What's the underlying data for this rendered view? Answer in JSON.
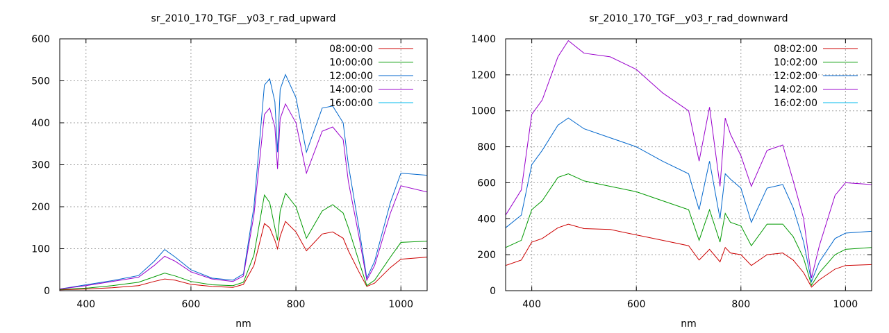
{
  "colors": {
    "08": "#cc0000",
    "10": "#009900",
    "12": "#0066cc",
    "14": "#9900cc",
    "16": "#00bbee"
  },
  "chart_data": [
    {
      "type": "line",
      "title": "sr_2010_170_TGF__y03_r_rad_upward",
      "xlabel": "nm",
      "ylabel": "",
      "xlim": [
        350,
        1050
      ],
      "ylim": [
        0,
        600
      ],
      "xticks": [
        400,
        600,
        800,
        1000
      ],
      "yticks": [
        0,
        100,
        200,
        300,
        400,
        500,
        600
      ],
      "grid": true,
      "legend": "top-right",
      "series": [
        {
          "name": "08:00:00",
          "color": "#cc0000",
          "x": [
            350,
            400,
            450,
            500,
            530,
            550,
            570,
            600,
            640,
            680,
            700,
            720,
            740,
            750,
            760,
            765,
            770,
            780,
            800,
            820,
            850,
            870,
            890,
            900,
            920,
            935,
            950,
            980,
            1000,
            1050
          ],
          "y": [
            2,
            4,
            7,
            12,
            22,
            28,
            25,
            15,
            10,
            8,
            15,
            60,
            160,
            150,
            120,
            100,
            130,
            165,
            140,
            95,
            135,
            140,
            125,
            95,
            45,
            10,
            18,
            55,
            75,
            80
          ]
        },
        {
          "name": "10:00:00",
          "color": "#009900",
          "x": [
            350,
            400,
            450,
            500,
            530,
            550,
            570,
            600,
            640,
            680,
            700,
            720,
            740,
            750,
            760,
            765,
            770,
            780,
            800,
            820,
            850,
            870,
            890,
            900,
            920,
            935,
            950,
            980,
            1000,
            1050
          ],
          "y": [
            3,
            6,
            12,
            20,
            33,
            42,
            35,
            22,
            14,
            12,
            20,
            85,
            228,
            210,
            150,
            120,
            190,
            232,
            200,
            125,
            190,
            205,
            185,
            150,
            70,
            12,
            25,
            80,
            115,
            118
          ]
        },
        {
          "name": "12:00:00",
          "color": "#0066cc",
          "x": [
            350,
            400,
            450,
            500,
            530,
            550,
            570,
            600,
            640,
            680,
            700,
            720,
            740,
            750,
            760,
            765,
            770,
            780,
            800,
            820,
            850,
            870,
            890,
            900,
            920,
            935,
            950,
            980,
            1000,
            1050
          ],
          "y": [
            4,
            14,
            24,
            36,
            70,
            98,
            80,
            50,
            30,
            25,
            40,
            200,
            490,
            505,
            450,
            330,
            480,
            515,
            460,
            330,
            435,
            440,
            400,
            300,
            150,
            30,
            70,
            210,
            280,
            275
          ]
        },
        {
          "name": "14:00:00",
          "color": "#9900cc",
          "x": [
            350,
            400,
            450,
            500,
            530,
            550,
            570,
            600,
            640,
            680,
            700,
            720,
            740,
            750,
            760,
            765,
            770,
            780,
            800,
            820,
            850,
            870,
            890,
            900,
            920,
            935,
            950,
            980,
            1000,
            1050
          ],
          "y": [
            4,
            12,
            22,
            32,
            60,
            82,
            70,
            45,
            28,
            22,
            35,
            180,
            420,
            435,
            390,
            290,
            410,
            445,
            400,
            280,
            380,
            390,
            360,
            260,
            130,
            25,
            60,
            185,
            250,
            235
          ]
        },
        {
          "name": "16:00:00",
          "color": "#00bbee",
          "x": [
            350,
            1050
          ],
          "y": [
            0,
            0
          ]
        }
      ]
    },
    {
      "type": "line",
      "title": "sr_2010_170_TGF__y03_r_rad_downward",
      "xlabel": "nm",
      "ylabel": "",
      "xlim": [
        350,
        1050
      ],
      "ylim": [
        0,
        1400
      ],
      "xticks": [
        400,
        600,
        800,
        1000
      ],
      "yticks": [
        0,
        200,
        400,
        600,
        800,
        1000,
        1200,
        1400
      ],
      "grid": true,
      "legend": "top-right",
      "series": [
        {
          "name": "08:02:00",
          "color": "#cc0000",
          "x": [
            350,
            380,
            400,
            420,
            450,
            470,
            500,
            550,
            600,
            650,
            700,
            720,
            740,
            760,
            770,
            780,
            800,
            820,
            850,
            880,
            900,
            920,
            935,
            950,
            980,
            1000,
            1050
          ],
          "y": [
            140,
            170,
            270,
            290,
            350,
            370,
            345,
            340,
            310,
            280,
            250,
            170,
            230,
            160,
            240,
            210,
            200,
            140,
            200,
            210,
            170,
            100,
            20,
            60,
            120,
            140,
            145
          ]
        },
        {
          "name": "10:02:00",
          "color": "#009900",
          "x": [
            350,
            380,
            400,
            420,
            450,
            470,
            500,
            550,
            600,
            650,
            700,
            720,
            740,
            760,
            770,
            780,
            800,
            820,
            850,
            880,
            900,
            920,
            935,
            950,
            980,
            1000,
            1050
          ],
          "y": [
            240,
            280,
            450,
            500,
            630,
            650,
            610,
            580,
            550,
            500,
            450,
            280,
            450,
            270,
            430,
            380,
            360,
            250,
            370,
            370,
            300,
            180,
            30,
            100,
            200,
            230,
            240
          ]
        },
        {
          "name": "12:02:00",
          "color": "#0066cc",
          "x": [
            350,
            380,
            400,
            420,
            450,
            470,
            500,
            550,
            600,
            650,
            700,
            720,
            740,
            760,
            770,
            780,
            800,
            820,
            850,
            880,
            900,
            920,
            935,
            950,
            980,
            1000,
            1050
          ],
          "y": [
            350,
            420,
            700,
            780,
            920,
            960,
            900,
            850,
            800,
            720,
            650,
            450,
            720,
            400,
            650,
            620,
            570,
            380,
            570,
            590,
            460,
            270,
            50,
            160,
            290,
            320,
            330
          ]
        },
        {
          "name": "14:02:00",
          "color": "#9900cc",
          "x": [
            350,
            380,
            400,
            420,
            450,
            470,
            500,
            550,
            600,
            650,
            700,
            720,
            740,
            760,
            770,
            780,
            800,
            820,
            850,
            880,
            900,
            920,
            935,
            950,
            980,
            1000,
            1050
          ],
          "y": [
            420,
            560,
            980,
            1060,
            1300,
            1390,
            1320,
            1300,
            1230,
            1100,
            1000,
            720,
            1020,
            580,
            960,
            870,
            750,
            580,
            780,
            810,
            610,
            400,
            70,
            250,
            530,
            600,
            590
          ]
        },
        {
          "name": "16:02:00",
          "color": "#00bbee",
          "x": [
            350,
            1050
          ],
          "y": [
            0,
            0
          ]
        }
      ]
    }
  ]
}
